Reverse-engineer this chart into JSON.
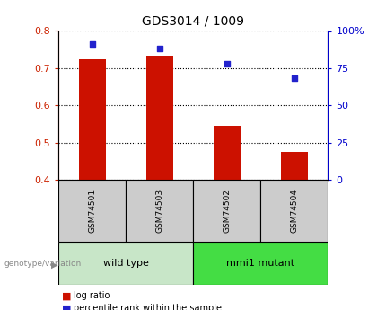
{
  "title": "GDS3014 / 1009",
  "samples": [
    "GSM74501",
    "GSM74503",
    "GSM74502",
    "GSM74504"
  ],
  "log_ratios": [
    0.725,
    0.733,
    0.545,
    0.475
  ],
  "percentile_ranks": [
    91,
    88,
    78,
    68
  ],
  "ylim_left": [
    0.4,
    0.8
  ],
  "ylim_right": [
    0,
    100
  ],
  "yticks_left": [
    0.4,
    0.5,
    0.6,
    0.7,
    0.8
  ],
  "yticks_right": [
    0,
    25,
    50,
    75,
    100
  ],
  "ytick_labels_right": [
    "0",
    "25",
    "50",
    "75",
    "100%"
  ],
  "bar_color": "#cc1100",
  "dot_color": "#2222cc",
  "bar_width": 0.4,
  "groups": [
    {
      "label": "wild type",
      "samples": [
        0,
        1
      ],
      "color": "#c8e6c8"
    },
    {
      "label": "mmi1 mutant",
      "samples": [
        2,
        3
      ],
      "color": "#44dd44"
    }
  ],
  "group_label_prefix": "genotype/variation",
  "legend_bar_label": "log ratio",
  "legend_dot_label": "percentile rank within the sample",
  "title_fontsize": 10,
  "axis_color_left": "#cc2200",
  "axis_color_right": "#0000cc",
  "sample_box_color": "#cccccc",
  "background_color": "#ffffff"
}
